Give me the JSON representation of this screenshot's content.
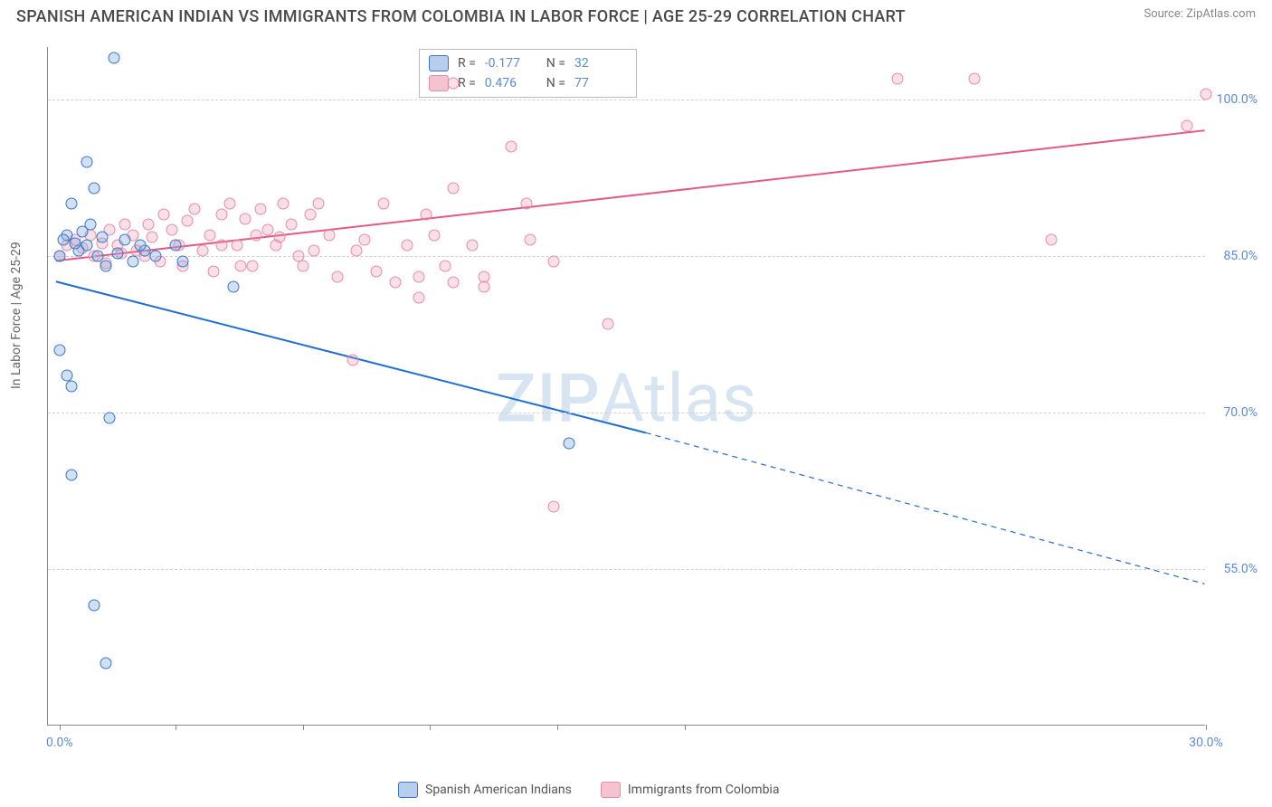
{
  "title": "SPANISH AMERICAN INDIAN VS IMMIGRANTS FROM COLOMBIA IN LABOR FORCE | AGE 25-29 CORRELATION CHART",
  "source": "Source: ZipAtlas.com",
  "ylabel": "In Labor Force | Age 25-29",
  "watermark_a": "ZIP",
  "watermark_b": "Atlas",
  "chart": {
    "type": "scatter",
    "background_color": "#ffffff",
    "grid_color": "#d0d0d0",
    "axis_color": "#888888",
    "tick_label_color": "#5b8bd4",
    "marker_size": 13,
    "xlim": [
      0,
      30
    ],
    "ylim": [
      40,
      105
    ],
    "xticks": [
      0.3,
      3.3,
      6.6,
      9.9,
      13.2,
      16.5,
      30
    ],
    "xtick_show_labels": [
      0.3,
      30
    ],
    "xtick_labels": {
      "0.3": "0.0%",
      "30": "30.0%"
    },
    "yticks": [
      55,
      70,
      85,
      100
    ],
    "ytick_labels": [
      "55.0%",
      "70.0%",
      "85.0%",
      "100.0%"
    ],
    "series": {
      "blue": {
        "label": "Spanish American Indians",
        "point_fill": "rgba(126,166,224,0.35)",
        "point_stroke": "#3976c9",
        "trend_color": "#1f6fd1",
        "trend_width": 2,
        "trend_solid": {
          "x1": 0.2,
          "y1": 82.5,
          "x2": 15.5,
          "y2": 68.0
        },
        "trend_dash": {
          "x1": 15.5,
          "y1": 68.0,
          "x2": 30.0,
          "y2": 53.5
        },
        "corr_R": "-0.177",
        "corr_N": "32",
        "points": [
          {
            "x": 0.3,
            "y": 85
          },
          {
            "x": 0.5,
            "y": 87
          },
          {
            "x": 0.6,
            "y": 90
          },
          {
            "x": 0.8,
            "y": 85.5
          },
          {
            "x": 1.0,
            "y": 86
          },
          {
            "x": 1.1,
            "y": 88
          },
          {
            "x": 1.3,
            "y": 85
          },
          {
            "x": 1.5,
            "y": 84
          },
          {
            "x": 1.7,
            "y": 104
          },
          {
            "x": 1.0,
            "y": 94
          },
          {
            "x": 1.2,
            "y": 91.5
          },
          {
            "x": 2.2,
            "y": 84.5
          },
          {
            "x": 2.5,
            "y": 85.5
          },
          {
            "x": 2.8,
            "y": 85
          },
          {
            "x": 3.3,
            "y": 86
          },
          {
            "x": 3.5,
            "y": 84.5
          },
          {
            "x": 4.8,
            "y": 82
          },
          {
            "x": 0.3,
            "y": 76
          },
          {
            "x": 0.5,
            "y": 73.5
          },
          {
            "x": 0.6,
            "y": 72.5
          },
          {
            "x": 1.6,
            "y": 69.5
          },
          {
            "x": 0.6,
            "y": 64
          },
          {
            "x": 1.2,
            "y": 51.5
          },
          {
            "x": 1.5,
            "y": 46
          },
          {
            "x": 13.5,
            "y": 67
          },
          {
            "x": 0.4,
            "y": 86.5
          },
          {
            "x": 0.7,
            "y": 86.2
          },
          {
            "x": 0.9,
            "y": 87.3
          },
          {
            "x": 1.4,
            "y": 86.8
          },
          {
            "x": 1.8,
            "y": 85.2
          },
          {
            "x": 2.0,
            "y": 86.5
          },
          {
            "x": 2.4,
            "y": 86
          }
        ]
      },
      "pink": {
        "label": "Immigrants from Colombia",
        "point_fill": "rgba(235,145,170,0.28)",
        "point_stroke": "#e98aab",
        "trend_color": "#e35a88",
        "trend_width": 2,
        "trend_solid": {
          "x1": 0.2,
          "y1": 84.5,
          "x2": 30.0,
          "y2": 97.0
        },
        "corr_R": "0.476",
        "corr_N": "77",
        "points": [
          {
            "x": 0.3,
            "y": 85
          },
          {
            "x": 0.5,
            "y": 86
          },
          {
            "x": 0.7,
            "y": 86.5
          },
          {
            "x": 0.9,
            "y": 85.8
          },
          {
            "x": 1.1,
            "y": 87
          },
          {
            "x": 1.2,
            "y": 85
          },
          {
            "x": 1.4,
            "y": 86.2
          },
          {
            "x": 1.6,
            "y": 87.5
          },
          {
            "x": 1.8,
            "y": 86
          },
          {
            "x": 2.0,
            "y": 88
          },
          {
            "x": 2.2,
            "y": 87
          },
          {
            "x": 2.3,
            "y": 85.5
          },
          {
            "x": 2.5,
            "y": 85
          },
          {
            "x": 2.7,
            "y": 86.8
          },
          {
            "x": 2.9,
            "y": 84.5
          },
          {
            "x": 3.0,
            "y": 89
          },
          {
            "x": 3.2,
            "y": 87.5
          },
          {
            "x": 3.4,
            "y": 86
          },
          {
            "x": 3.5,
            "y": 84
          },
          {
            "x": 3.8,
            "y": 89.5
          },
          {
            "x": 4.0,
            "y": 85.5
          },
          {
            "x": 4.2,
            "y": 87
          },
          {
            "x": 4.3,
            "y": 83.5
          },
          {
            "x": 4.5,
            "y": 89
          },
          {
            "x": 4.7,
            "y": 90
          },
          {
            "x": 4.9,
            "y": 86
          },
          {
            "x": 5.1,
            "y": 88.5
          },
          {
            "x": 5.3,
            "y": 84
          },
          {
            "x": 5.5,
            "y": 89.5
          },
          {
            "x": 5.7,
            "y": 87.5
          },
          {
            "x": 5.9,
            "y": 86
          },
          {
            "x": 6.1,
            "y": 90
          },
          {
            "x": 6.3,
            "y": 88
          },
          {
            "x": 6.5,
            "y": 85
          },
          {
            "x": 6.6,
            "y": 84
          },
          {
            "x": 6.8,
            "y": 89
          },
          {
            "x": 7.0,
            "y": 90
          },
          {
            "x": 7.3,
            "y": 87
          },
          {
            "x": 7.5,
            "y": 83
          },
          {
            "x": 7.9,
            "y": 75
          },
          {
            "x": 8.2,
            "y": 86.5
          },
          {
            "x": 8.5,
            "y": 83.5
          },
          {
            "x": 8.7,
            "y": 90
          },
          {
            "x": 9.0,
            "y": 82.5
          },
          {
            "x": 9.3,
            "y": 86
          },
          {
            "x": 9.6,
            "y": 83
          },
          {
            "x": 9.6,
            "y": 81
          },
          {
            "x": 9.8,
            "y": 89
          },
          {
            "x": 10.0,
            "y": 87
          },
          {
            "x": 10.3,
            "y": 84
          },
          {
            "x": 10.5,
            "y": 82.5
          },
          {
            "x": 10.5,
            "y": 91.5
          },
          {
            "x": 10.5,
            "y": 101.5
          },
          {
            "x": 11.0,
            "y": 86
          },
          {
            "x": 11.3,
            "y": 83
          },
          {
            "x": 11.3,
            "y": 82
          },
          {
            "x": 12.0,
            "y": 95.5
          },
          {
            "x": 12.5,
            "y": 86.5
          },
          {
            "x": 12.4,
            "y": 90
          },
          {
            "x": 13.1,
            "y": 84.5
          },
          {
            "x": 13.1,
            "y": 61
          },
          {
            "x": 14.5,
            "y": 78.5
          },
          {
            "x": 8.0,
            "y": 85.5
          },
          {
            "x": 6.0,
            "y": 86.8
          },
          {
            "x": 4.5,
            "y": 86
          },
          {
            "x": 3.6,
            "y": 88.4
          },
          {
            "x": 2.6,
            "y": 88
          },
          {
            "x": 1.9,
            "y": 85.2
          },
          {
            "x": 1.5,
            "y": 84.3
          },
          {
            "x": 22.0,
            "y": 102
          },
          {
            "x": 24.0,
            "y": 102
          },
          {
            "x": 30.0,
            "y": 100.5
          },
          {
            "x": 29.5,
            "y": 97.5
          },
          {
            "x": 26.0,
            "y": 86.5
          },
          {
            "x": 5.0,
            "y": 84
          },
          {
            "x": 5.4,
            "y": 87
          },
          {
            "x": 6.9,
            "y": 85.5
          }
        ]
      }
    }
  },
  "legend": {
    "r_label": "R  = ",
    "n_label": "N = "
  }
}
